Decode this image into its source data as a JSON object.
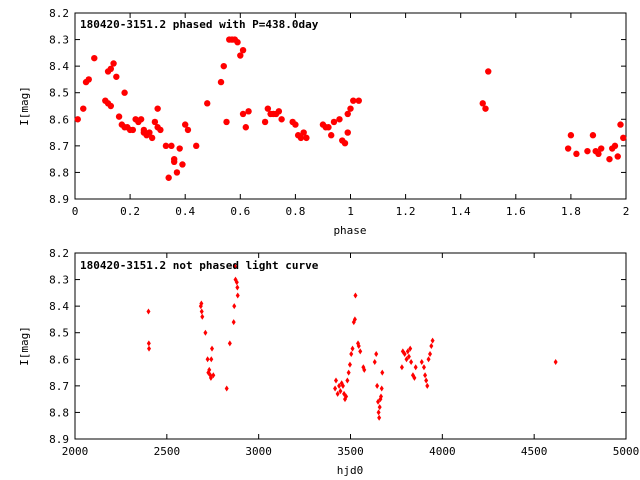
{
  "chart_data": [
    {
      "type": "scatter",
      "title": "180420-3151.2 phased with P=438.0day",
      "xlabel": "phase",
      "ylabel": "I[mag]",
      "xlim": [
        0,
        2
      ],
      "ylim": [
        8.9,
        8.2
      ],
      "y_inverted": true,
      "grid": false,
      "marker_color": "#ff0000",
      "marker": "filled-circle-large",
      "x_ticks": [
        "0",
        "0.2",
        "0.4",
        "0.6",
        "0.8",
        "1",
        "1.2",
        "1.4",
        "1.6",
        "1.8",
        "2"
      ],
      "y_ticks": [
        "8.2",
        "8.3",
        "8.4",
        "8.5",
        "8.6",
        "8.7",
        "8.8",
        "8.9"
      ],
      "points": [
        [
          0.01,
          8.6
        ],
        [
          0.03,
          8.56
        ],
        [
          0.04,
          8.46
        ],
        [
          0.05,
          8.45
        ],
        [
          0.07,
          8.37
        ],
        [
          0.11,
          8.53
        ],
        [
          0.12,
          8.42
        ],
        [
          0.12,
          8.54
        ],
        [
          0.13,
          8.55
        ],
        [
          0.13,
          8.41
        ],
        [
          0.14,
          8.39
        ],
        [
          0.15,
          8.44
        ],
        [
          0.16,
          8.59
        ],
        [
          0.17,
          8.62
        ],
        [
          0.18,
          8.5
        ],
        [
          0.18,
          8.63
        ],
        [
          0.19,
          8.63
        ],
        [
          0.2,
          8.64
        ],
        [
          0.21,
          8.64
        ],
        [
          0.22,
          8.6
        ],
        [
          0.23,
          8.61
        ],
        [
          0.24,
          8.6
        ],
        [
          0.25,
          8.64
        ],
        [
          0.25,
          8.65
        ],
        [
          0.26,
          8.66
        ],
        [
          0.27,
          8.65
        ],
        [
          0.28,
          8.67
        ],
        [
          0.29,
          8.61
        ],
        [
          0.3,
          8.63
        ],
        [
          0.3,
          8.56
        ],
        [
          0.31,
          8.64
        ],
        [
          0.33,
          8.7
        ],
        [
          0.34,
          8.82
        ],
        [
          0.35,
          8.7
        ],
        [
          0.36,
          8.75
        ],
        [
          0.36,
          8.76
        ],
        [
          0.37,
          8.8
        ],
        [
          0.38,
          8.71
        ],
        [
          0.39,
          8.77
        ],
        [
          0.4,
          8.62
        ],
        [
          0.41,
          8.64
        ],
        [
          0.44,
          8.7
        ],
        [
          0.48,
          8.54
        ],
        [
          0.53,
          8.46
        ],
        [
          0.54,
          8.4
        ],
        [
          0.55,
          8.61
        ],
        [
          0.56,
          8.3
        ],
        [
          0.57,
          8.3
        ],
        [
          0.58,
          8.3
        ],
        [
          0.59,
          8.31
        ],
        [
          0.6,
          8.36
        ],
        [
          0.61,
          8.34
        ],
        [
          0.61,
          8.58
        ],
        [
          0.62,
          8.63
        ],
        [
          0.63,
          8.57
        ],
        [
          0.69,
          8.61
        ],
        [
          0.7,
          8.56
        ],
        [
          0.71,
          8.58
        ],
        [
          0.72,
          8.58
        ],
        [
          0.73,
          8.58
        ],
        [
          0.74,
          8.57
        ],
        [
          0.75,
          8.6
        ],
        [
          0.79,
          8.61
        ],
        [
          0.8,
          8.62
        ],
        [
          0.81,
          8.66
        ],
        [
          0.82,
          8.67
        ],
        [
          0.83,
          8.65
        ],
        [
          0.84,
          8.67
        ],
        [
          0.9,
          8.62
        ],
        [
          0.91,
          8.63
        ],
        [
          0.92,
          8.63
        ],
        [
          0.93,
          8.66
        ],
        [
          0.94,
          8.61
        ],
        [
          0.96,
          8.6
        ],
        [
          0.97,
          8.68
        ],
        [
          0.98,
          8.69
        ],
        [
          0.99,
          8.65
        ],
        [
          0.99,
          8.58
        ],
        [
          1.0,
          8.56
        ],
        [
          1.01,
          8.53
        ],
        [
          1.03,
          8.53
        ],
        [
          1.48,
          8.54
        ],
        [
          1.49,
          8.56
        ],
        [
          1.5,
          8.42
        ],
        [
          1.79,
          8.71
        ],
        [
          1.8,
          8.66
        ],
        [
          1.82,
          8.73
        ],
        [
          1.86,
          8.72
        ],
        [
          1.88,
          8.66
        ],
        [
          1.89,
          8.72
        ],
        [
          1.9,
          8.73
        ],
        [
          1.91,
          8.71
        ],
        [
          1.94,
          8.75
        ],
        [
          1.95,
          8.71
        ],
        [
          1.96,
          8.7
        ],
        [
          1.97,
          8.74
        ],
        [
          1.98,
          8.62
        ],
        [
          1.99,
          8.67
        ]
      ]
    },
    {
      "type": "scatter",
      "title": "180420-3151.2 not phased light curve",
      "xlabel": "hjd0",
      "ylabel": "I[mag]",
      "xlim": [
        2000,
        5000
      ],
      "ylim": [
        8.9,
        8.2
      ],
      "y_inverted": true,
      "grid": false,
      "marker_color": "#ff0000",
      "marker": "small-diamond",
      "x_ticks": [
        "2000",
        "2500",
        "3000",
        "3500",
        "4000",
        "4500",
        "5000"
      ],
      "y_ticks": [
        "8.2",
        "8.3",
        "8.4",
        "8.5",
        "8.6",
        "8.7",
        "8.8",
        "8.9"
      ],
      "points": [
        [
          2400,
          8.42
        ],
        [
          2402,
          8.54
        ],
        [
          2403,
          8.56
        ],
        [
          2685,
          8.4
        ],
        [
          2688,
          8.39
        ],
        [
          2690,
          8.42
        ],
        [
          2693,
          8.44
        ],
        [
          2710,
          8.5
        ],
        [
          2722,
          8.6
        ],
        [
          2726,
          8.65
        ],
        [
          2731,
          8.64
        ],
        [
          2737,
          8.66
        ],
        [
          2740,
          8.67
        ],
        [
          2742,
          8.6
        ],
        [
          2746,
          8.56
        ],
        [
          2753,
          8.66
        ],
        [
          2826,
          8.71
        ],
        [
          2843,
          8.54
        ],
        [
          2864,
          8.46
        ],
        [
          2867,
          8.4
        ],
        [
          2870,
          8.25
        ],
        [
          2874,
          8.3
        ],
        [
          2881,
          8.31
        ],
        [
          2884,
          8.33
        ],
        [
          2886,
          8.36
        ],
        [
          3416,
          8.71
        ],
        [
          3421,
          8.68
        ],
        [
          3430,
          8.73
        ],
        [
          3438,
          8.7
        ],
        [
          3445,
          8.72
        ],
        [
          3452,
          8.69
        ],
        [
          3459,
          8.7
        ],
        [
          3465,
          8.73
        ],
        [
          3470,
          8.75
        ],
        [
          3476,
          8.74
        ],
        [
          3483,
          8.68
        ],
        [
          3490,
          8.65
        ],
        [
          3497,
          8.62
        ],
        [
          3504,
          8.58
        ],
        [
          3511,
          8.56
        ],
        [
          3518,
          8.46
        ],
        [
          3524,
          8.45
        ],
        [
          3527,
          8.36
        ],
        [
          3541,
          8.54
        ],
        [
          3545,
          8.55
        ],
        [
          3553,
          8.57
        ],
        [
          3570,
          8.63
        ],
        [
          3575,
          8.64
        ],
        [
          3632,
          8.61
        ],
        [
          3640,
          8.58
        ],
        [
          3645,
          8.7
        ],
        [
          3650,
          8.76
        ],
        [
          3653,
          8.8
        ],
        [
          3656,
          8.82
        ],
        [
          3659,
          8.78
        ],
        [
          3663,
          8.75
        ],
        [
          3666,
          8.74
        ],
        [
          3670,
          8.71
        ],
        [
          3673,
          8.65
        ],
        [
          3780,
          8.63
        ],
        [
          3785,
          8.57
        ],
        [
          3795,
          8.58
        ],
        [
          3805,
          8.6
        ],
        [
          3812,
          8.57
        ],
        [
          3818,
          8.59
        ],
        [
          3825,
          8.56
        ],
        [
          3830,
          8.61
        ],
        [
          3840,
          8.66
        ],
        [
          3848,
          8.67
        ],
        [
          3855,
          8.63
        ],
        [
          3888,
          8.61
        ],
        [
          3900,
          8.63
        ],
        [
          3906,
          8.66
        ],
        [
          3912,
          8.68
        ],
        [
          3918,
          8.7
        ],
        [
          3925,
          8.6
        ],
        [
          3933,
          8.58
        ],
        [
          3940,
          8.55
        ],
        [
          3947,
          8.53
        ],
        [
          4617,
          8.61
        ]
      ]
    }
  ]
}
